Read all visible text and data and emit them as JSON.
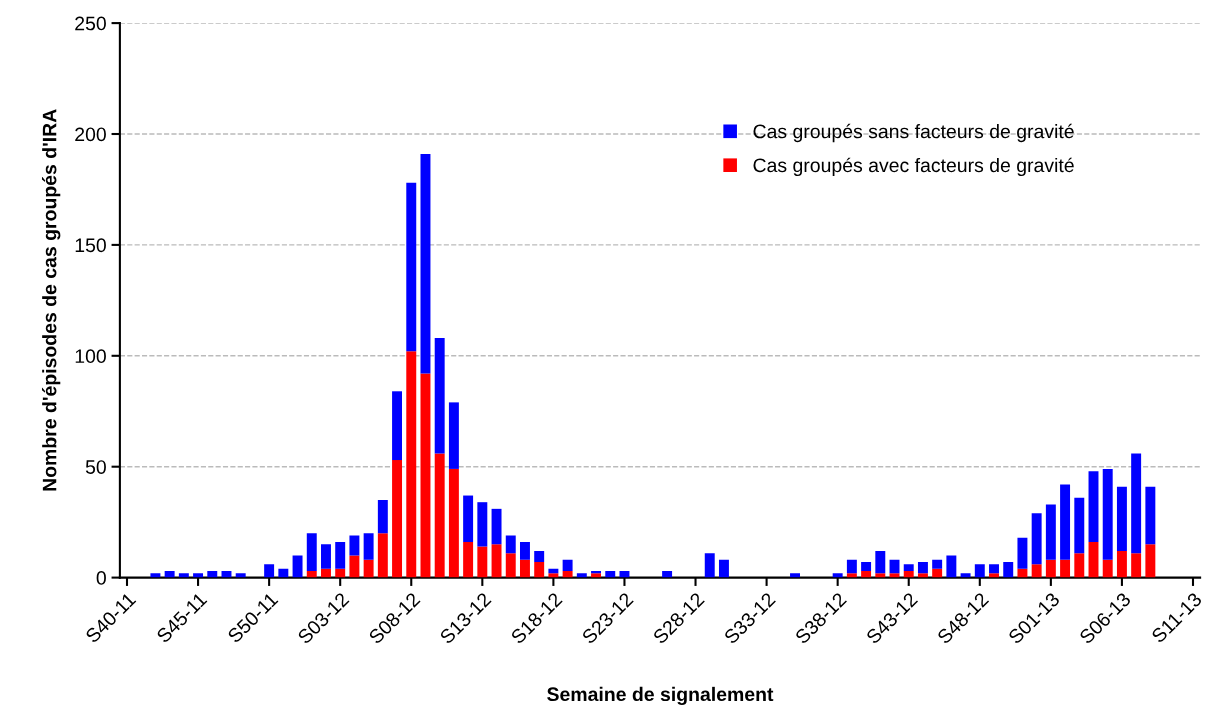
{
  "chart_data": {
    "type": "bar",
    "stacked": true,
    "xlabel": "Semaine de signalement",
    "ylabel": "Nombre d'épisodes de cas groupés d'IRA",
    "categories": [
      "S40-11",
      null,
      null,
      null,
      null,
      "S45-11",
      null,
      null,
      null,
      null,
      "S50-11",
      null,
      null,
      null,
      null,
      "S03-12",
      null,
      null,
      null,
      null,
      "S08-12",
      null,
      null,
      null,
      null,
      "S13-12",
      null,
      null,
      null,
      null,
      "S18-12",
      null,
      null,
      null,
      null,
      "S23-12",
      null,
      null,
      null,
      null,
      "S28-12",
      null,
      null,
      null,
      null,
      "S33-12",
      null,
      null,
      null,
      null,
      "S38-12",
      null,
      null,
      null,
      null,
      "S43-12",
      null,
      null,
      null,
      null,
      "S48-12",
      null,
      null,
      null,
      null,
      "S01-13",
      null,
      null,
      null,
      null,
      "S06-13",
      null,
      null,
      null,
      null,
      "S11-13"
    ],
    "series": [
      {
        "name": "Cas groupés avec facteurs de gravité",
        "color": "#ff0000",
        "values": [
          0,
          0,
          0,
          0,
          0,
          0,
          0,
          0,
          0,
          0,
          0,
          0,
          0,
          3,
          4,
          4,
          10,
          8,
          20,
          53,
          102,
          92,
          56,
          49,
          16,
          14,
          15,
          11,
          8,
          7,
          2,
          3,
          0,
          2,
          0,
          0,
          0,
          0,
          0,
          0,
          0,
          0,
          0,
          0,
          0,
          0,
          0,
          0,
          0,
          0,
          0,
          2,
          3,
          2,
          2,
          3,
          2,
          4,
          0,
          0,
          0,
          2,
          0,
          4,
          6,
          8,
          8,
          11,
          16,
          8,
          12,
          11,
          15,
          0,
          0,
          0
        ]
      },
      {
        "name": "Cas groupés sans facteurs de gravité",
        "color": "#0000ff",
        "values": [
          0,
          0,
          2,
          3,
          2,
          2,
          3,
          3,
          2,
          0,
          6,
          4,
          10,
          17,
          11,
          12,
          9,
          12,
          15,
          31,
          76,
          99,
          52,
          30,
          21,
          20,
          16,
          8,
          8,
          5,
          2,
          5,
          2,
          1,
          3,
          3,
          0,
          0,
          3,
          0,
          0,
          11,
          8,
          0,
          0,
          0,
          0,
          2,
          0,
          0,
          2,
          6,
          4,
          10,
          6,
          3,
          5,
          4,
          10,
          2,
          6,
          4,
          7,
          14,
          23,
          25,
          34,
          25,
          32,
          41,
          29,
          45,
          26,
          0,
          0,
          0
        ]
      }
    ],
    "ylim": [
      0,
      250
    ],
    "yticks": [
      0,
      50,
      100,
      150,
      200,
      250
    ],
    "grid": "y",
    "legend": "top right"
  }
}
